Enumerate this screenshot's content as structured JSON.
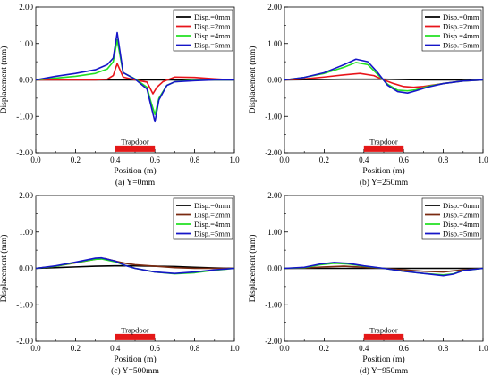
{
  "chart_data": [
    {
      "type": "line",
      "caption": "(a) Y=0mm",
      "xlabel": "Position (m)",
      "ylabel": "Displacement (mm)",
      "xlim": [
        0,
        1
      ],
      "ylim": [
        -2,
        2
      ],
      "xticks": [
        "0.0",
        "0.2",
        "0.4",
        "0.6",
        "0.8",
        "1.0"
      ],
      "yticks": [
        "2.00",
        "1.00",
        "0.00",
        "-1.00",
        "-2.00"
      ],
      "legend_position": "top-right",
      "annotation": {
        "label": "Trapdoor",
        "x": [
          0.4,
          0.6
        ],
        "y": -1.85
      },
      "series": [
        {
          "name": "Disp.=0mm",
          "color": "#000000",
          "x": [
            0,
            0.4,
            0.6,
            1.0
          ],
          "y": [
            0,
            0,
            0,
            0
          ]
        },
        {
          "name": "Disp.=2mm",
          "color": "#e8141a",
          "x": [
            0,
            0.3,
            0.36,
            0.39,
            0.41,
            0.44,
            0.5,
            0.56,
            0.59,
            0.61,
            0.64,
            0.7,
            0.8,
            0.9,
            1.0
          ],
          "y": [
            0,
            0,
            0.02,
            0.12,
            0.45,
            0.08,
            0.0,
            -0.06,
            -0.38,
            -0.2,
            -0.05,
            0.08,
            0.07,
            0.03,
            0
          ]
        },
        {
          "name": "Disp.=4mm",
          "color": "#22e022",
          "x": [
            0,
            0.1,
            0.2,
            0.3,
            0.36,
            0.39,
            0.41,
            0.44,
            0.5,
            0.56,
            0.58,
            0.6,
            0.62,
            0.66,
            0.7,
            0.8,
            0.9,
            1.0
          ],
          "y": [
            0,
            0.05,
            0.1,
            0.18,
            0.3,
            0.5,
            1.1,
            0.2,
            0.03,
            -0.2,
            -0.6,
            -0.95,
            -0.5,
            -0.15,
            -0.05,
            0.0,
            0.0,
            0
          ]
        },
        {
          "name": "Disp.=5mm",
          "color": "#1515c8",
          "x": [
            0,
            0.1,
            0.2,
            0.3,
            0.36,
            0.39,
            0.41,
            0.44,
            0.5,
            0.56,
            0.58,
            0.6,
            0.62,
            0.66,
            0.7,
            0.8,
            0.9,
            1.0
          ],
          "y": [
            0,
            0.1,
            0.18,
            0.28,
            0.42,
            0.6,
            1.3,
            0.2,
            0.02,
            -0.25,
            -0.7,
            -1.15,
            -0.55,
            -0.15,
            -0.05,
            -0.02,
            0.0,
            0
          ]
        }
      ]
    },
    {
      "type": "line",
      "caption": "(b) Y=250mm",
      "xlabel": "Position (m)",
      "ylabel": "Displacement (mm)",
      "xlim": [
        0,
        1
      ],
      "ylim": [
        -2,
        2
      ],
      "xticks": [
        "0.0",
        "0.2",
        "0.4",
        "0.6",
        "0.8",
        "1.0"
      ],
      "yticks": [
        "2.00",
        "1.00",
        "0.00",
        "-1.00",
        "-2.00"
      ],
      "legend_position": "top-right",
      "annotation": {
        "label": "Trapdoor",
        "x": [
          0.4,
          0.6
        ],
        "y": -1.85
      },
      "series": [
        {
          "name": "Disp.=0mm",
          "color": "#000000",
          "x": [
            0,
            0.3,
            0.5,
            0.7,
            1.0
          ],
          "y": [
            0,
            0.02,
            0.02,
            0,
            0
          ]
        },
        {
          "name": "Disp.=2mm",
          "color": "#e8141a",
          "x": [
            0,
            0.1,
            0.2,
            0.3,
            0.38,
            0.45,
            0.5,
            0.55,
            0.6,
            0.65,
            0.7,
            0.8,
            0.9,
            1.0
          ],
          "y": [
            0,
            0.03,
            0.08,
            0.14,
            0.18,
            0.12,
            0.0,
            -0.1,
            -0.18,
            -0.2,
            -0.18,
            -0.1,
            -0.03,
            0
          ]
        },
        {
          "name": "Disp.=4mm",
          "color": "#22e022",
          "x": [
            0,
            0.1,
            0.2,
            0.3,
            0.36,
            0.42,
            0.47,
            0.52,
            0.57,
            0.62,
            0.66,
            0.72,
            0.8,
            0.9,
            1.0
          ],
          "y": [
            0,
            0.07,
            0.18,
            0.35,
            0.48,
            0.42,
            0.15,
            -0.12,
            -0.28,
            -0.3,
            -0.27,
            -0.18,
            -0.1,
            -0.03,
            0
          ]
        },
        {
          "name": "Disp.=5mm",
          "color": "#1515c8",
          "x": [
            0,
            0.1,
            0.2,
            0.3,
            0.36,
            0.42,
            0.47,
            0.52,
            0.57,
            0.62,
            0.66,
            0.72,
            0.8,
            0.9,
            1.0
          ],
          "y": [
            0,
            0.07,
            0.2,
            0.42,
            0.57,
            0.5,
            0.2,
            -0.15,
            -0.32,
            -0.36,
            -0.3,
            -0.2,
            -0.1,
            -0.03,
            0
          ]
        }
      ]
    },
    {
      "type": "line",
      "caption": "(c) Y=500mm",
      "xlabel": "Position (m)",
      "ylabel": "Displacement (mm)",
      "xlim": [
        0,
        1
      ],
      "ylim": [
        -2,
        2
      ],
      "xticks": [
        "0.0",
        "0.2",
        "0.4",
        "0.6",
        "0.8",
        "1.0"
      ],
      "yticks": [
        "2.00",
        "1.00",
        "0.00",
        "-1.00",
        "-2.00"
      ],
      "legend_position": "top-right",
      "annotation": {
        "label": "Trapdoor",
        "x": [
          0.4,
          0.6
        ],
        "y": -1.85
      },
      "series": [
        {
          "name": "Disp.=0mm",
          "color": "#000000",
          "x": [
            0,
            0.1,
            0.2,
            0.3,
            0.4,
            0.5,
            0.6,
            0.7,
            0.8,
            0.9,
            1.0
          ],
          "y": [
            0,
            0.02,
            0.04,
            0.06,
            0.07,
            0.07,
            0.06,
            0.05,
            0.03,
            0.01,
            0
          ]
        },
        {
          "name": "Disp.=2mm",
          "color": "#7a2a10",
          "x": [
            0,
            0.1,
            0.2,
            0.3,
            0.35,
            0.4,
            0.45,
            0.5,
            0.6,
            0.7,
            0.8,
            0.9,
            1.0
          ],
          "y": [
            0,
            0.06,
            0.15,
            0.25,
            0.27,
            0.2,
            0.14,
            0.1,
            0.06,
            0.02,
            0.0,
            0.0,
            0
          ]
        },
        {
          "name": "Disp.=4mm",
          "color": "#22e022",
          "x": [
            0,
            0.1,
            0.2,
            0.3,
            0.33,
            0.4,
            0.45,
            0.5,
            0.6,
            0.7,
            0.8,
            0.9,
            1.0
          ],
          "y": [
            0,
            0.06,
            0.16,
            0.25,
            0.26,
            0.18,
            0.08,
            0.0,
            -0.1,
            -0.15,
            -0.12,
            -0.05,
            0
          ]
        },
        {
          "name": "Disp.=5mm",
          "color": "#1515c8",
          "x": [
            0,
            0.1,
            0.2,
            0.3,
            0.33,
            0.4,
            0.45,
            0.5,
            0.6,
            0.7,
            0.8,
            0.9,
            1.0
          ],
          "y": [
            0,
            0.07,
            0.17,
            0.28,
            0.29,
            0.2,
            0.08,
            0.0,
            -0.1,
            -0.14,
            -0.1,
            -0.04,
            0
          ]
        }
      ]
    },
    {
      "type": "line",
      "caption": "(d) Y=950mm",
      "xlabel": "Position (m)",
      "ylabel": "Displacement (mm)",
      "xlim": [
        0,
        1
      ],
      "ylim": [
        -2,
        2
      ],
      "xticks": [
        "0.0",
        "0.2",
        "0.4",
        "0.6",
        "0.8",
        "1.0"
      ],
      "yticks": [
        "2.00",
        "1.00",
        "0.00",
        "-1.00",
        "-2.00"
      ],
      "legend_position": "top-right",
      "annotation": {
        "label": "Trapdoor",
        "x": [
          0.4,
          0.6
        ],
        "y": -1.85
      },
      "series": [
        {
          "name": "Disp.=0mm",
          "color": "#000000",
          "x": [
            0,
            0.2,
            0.4,
            0.6,
            0.8,
            1.0
          ],
          "y": [
            0,
            0,
            0,
            0,
            0,
            0
          ]
        },
        {
          "name": "Disp.=2mm",
          "color": "#7a2a10",
          "x": [
            0,
            0.1,
            0.2,
            0.3,
            0.4,
            0.5,
            0.6,
            0.7,
            0.8,
            0.9,
            1.0
          ],
          "y": [
            0,
            0.01,
            0.04,
            0.06,
            0.03,
            0.0,
            -0.04,
            -0.08,
            -0.1,
            -0.04,
            0
          ]
        },
        {
          "name": "Disp.=4mm",
          "color": "#22e022",
          "x": [
            0,
            0.1,
            0.18,
            0.25,
            0.32,
            0.4,
            0.5,
            0.6,
            0.7,
            0.8,
            0.85,
            0.9,
            1.0
          ],
          "y": [
            0,
            0.02,
            0.1,
            0.14,
            0.12,
            0.06,
            0.0,
            -0.08,
            -0.14,
            -0.18,
            -0.15,
            -0.06,
            0
          ]
        },
        {
          "name": "Disp.=5mm",
          "color": "#1515c8",
          "x": [
            0,
            0.1,
            0.18,
            0.25,
            0.32,
            0.4,
            0.5,
            0.6,
            0.7,
            0.8,
            0.85,
            0.9,
            1.0
          ],
          "y": [
            0,
            0.03,
            0.12,
            0.16,
            0.14,
            0.07,
            0.0,
            -0.08,
            -0.14,
            -0.2,
            -0.16,
            -0.06,
            0
          ]
        }
      ]
    }
  ]
}
